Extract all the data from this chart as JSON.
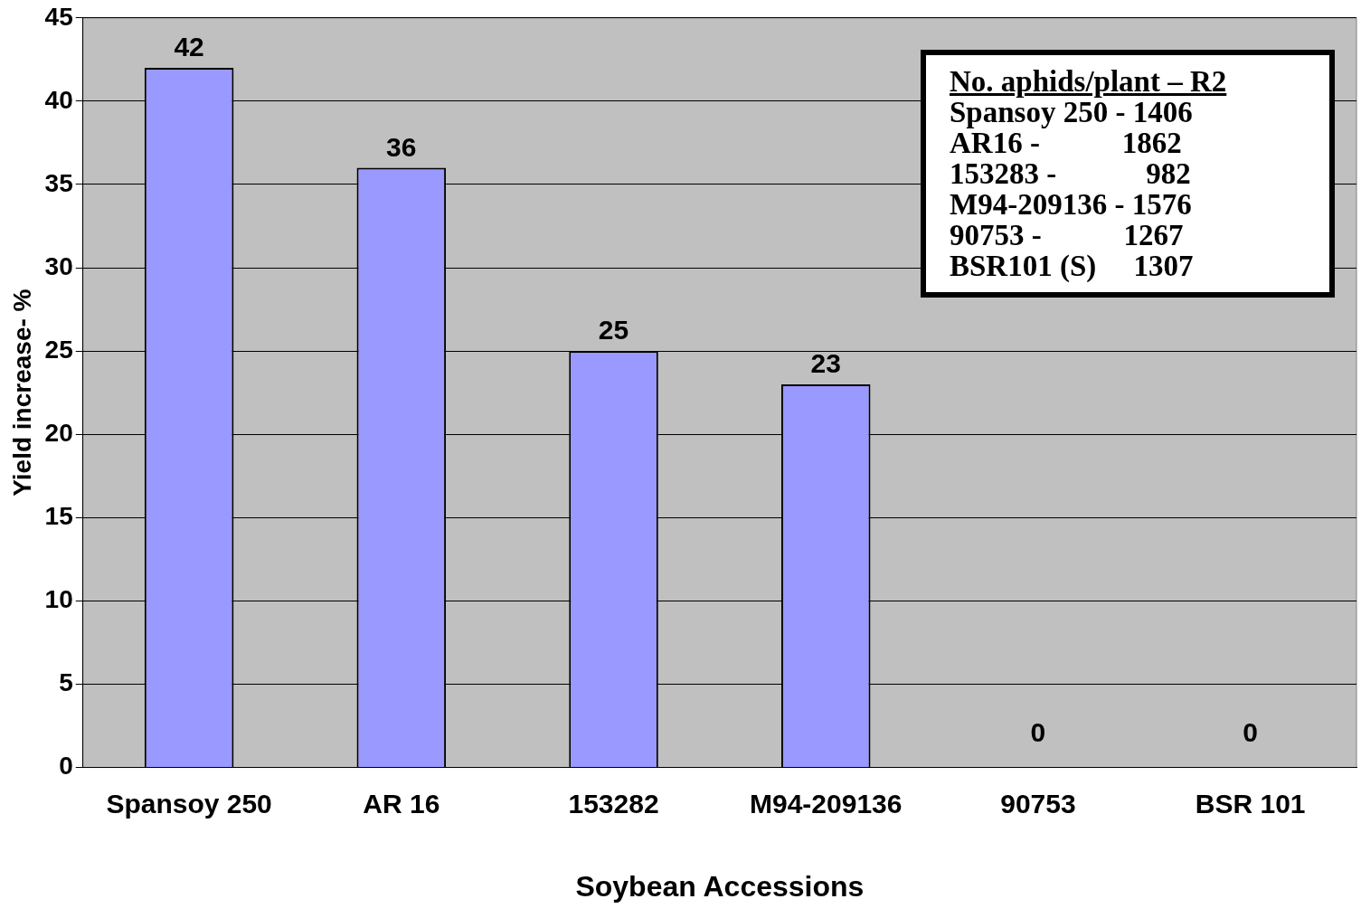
{
  "chart_data": {
    "type": "bar",
    "xlabel": "Soybean Accessions",
    "ylabel": "Yield increase- %",
    "categories": [
      "Spansoy 250",
      "AR 16",
      "153282",
      "M94-209136",
      "90753",
      "BSR 101"
    ],
    "values": [
      42,
      36,
      25,
      23,
      0,
      0
    ],
    "color": "#9999ff",
    "ylim": [
      0,
      45
    ],
    "yticks": [
      0,
      5,
      10,
      15,
      20,
      25,
      30,
      35,
      40,
      45
    ],
    "grid": "y",
    "data_labels": true,
    "legend": false,
    "annotations": [
      "No. aphids/plant – R2",
      "Spansoy 250 - 1406",
      "AR16 -           1862",
      "153283 -            982",
      "M94-209136 - 1576",
      "90753 -           1267",
      "BSR101 (S)     1307"
    ]
  }
}
